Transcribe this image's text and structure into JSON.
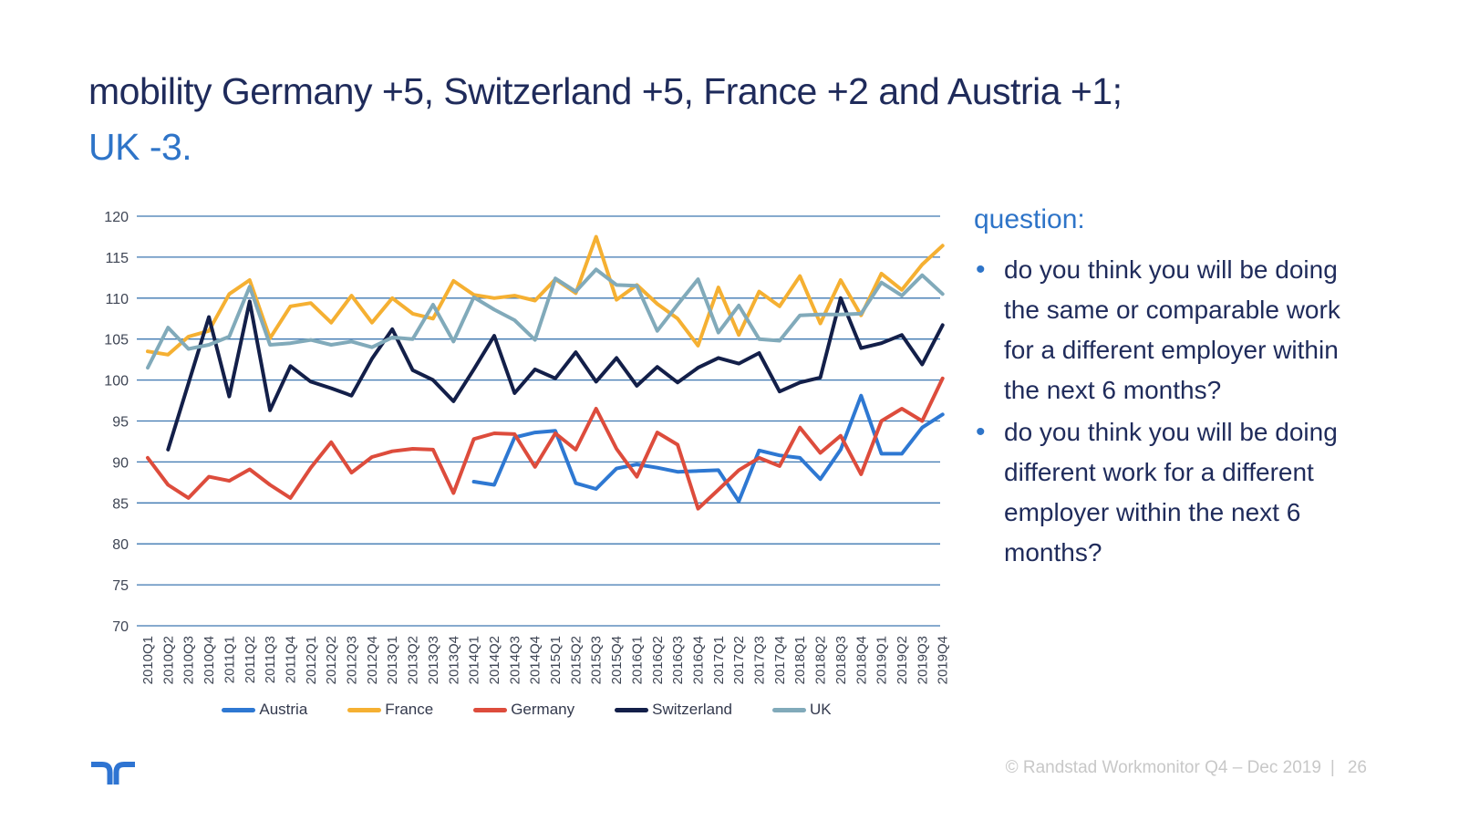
{
  "slide": {
    "title_line1": "mobility Germany +5, Switzerland +5, France +2 and Austria +1;",
    "title_line2": "UK -3.",
    "footer_text": "© Randstad Workmonitor Q4 – Dec 2019",
    "footer_separator": "|",
    "page_number": "26"
  },
  "question": {
    "heading": "question:",
    "bullets": [
      "do you think you will be doing the same or comparable work for a different employer within the next 6 months?",
      "do you think you will be doing different work for a different employer within the next 6 months?"
    ]
  },
  "colors": {
    "title_navy": "#1f2b5b",
    "accent_blue": "#2e74c8",
    "gridline": "#3d77b0",
    "axis_label": "#3e4554",
    "footer_gray": "#c8c8c8",
    "logo_blue": "#2e74d2"
  },
  "chart_data": {
    "type": "line",
    "title": "",
    "xlabel": "",
    "ylabel": "",
    "ylim": [
      70,
      120
    ],
    "ytick_step": 5,
    "grid": true,
    "legend_position": "bottom",
    "categories": [
      "2010Q1",
      "2010Q2",
      "2010Q3",
      "2010Q4",
      "2011Q1",
      "2011Q2",
      "2011Q3",
      "2011Q4",
      "2012Q1",
      "2012Q2",
      "2012Q3",
      "2012Q4",
      "2013Q1",
      "2013Q2",
      "2013Q3",
      "2013Q4",
      "2014Q1",
      "2014Q2",
      "2014Q3",
      "2014Q4",
      "2015Q1",
      "2015Q2",
      "2015Q3",
      "2015Q4",
      "2016Q1",
      "2016Q2",
      "2016Q3",
      "2016Q4",
      "2017Q1",
      "2017Q2",
      "2017Q3",
      "2017Q4",
      "2018Q1",
      "2018Q2",
      "2018Q3",
      "2018Q4",
      "2019Q1",
      "2019Q2",
      "2019Q3",
      "2019Q4"
    ],
    "series": [
      {
        "name": "Austria",
        "color": "#2e78d2",
        "values": [
          null,
          null,
          null,
          null,
          null,
          null,
          null,
          null,
          null,
          null,
          null,
          null,
          null,
          null,
          null,
          null,
          87.6,
          87.2,
          93.0,
          93.6,
          93.8,
          87.4,
          86.7,
          89.2,
          89.7,
          89.3,
          88.8,
          88.9,
          89.0,
          85.2,
          91.4,
          90.8,
          90.5,
          87.9,
          91.5,
          98.1,
          91.0,
          91.0,
          94.2,
          95.8
        ]
      },
      {
        "name": "France",
        "color": "#f5b032",
        "values": [
          103.5,
          103.1,
          105.3,
          106.0,
          110.5,
          112.2,
          105.1,
          109.0,
          109.4,
          107.0,
          110.3,
          107.0,
          110.0,
          108.1,
          107.5,
          112.1,
          110.4,
          110.0,
          110.3,
          109.7,
          112.3,
          110.6,
          117.5,
          109.8,
          111.6,
          109.3,
          107.5,
          104.2,
          111.3,
          105.5,
          110.8,
          109.0,
          112.7,
          106.9,
          112.2,
          107.9,
          113.0,
          111.0,
          114.1,
          116.4
        ]
      },
      {
        "name": "Germany",
        "color": "#dd4c3c",
        "values": [
          90.5,
          87.2,
          85.6,
          88.2,
          87.7,
          89.1,
          87.2,
          85.6,
          89.3,
          92.4,
          88.7,
          90.6,
          91.3,
          91.6,
          91.5,
          86.2,
          92.8,
          93.5,
          93.4,
          89.4,
          93.5,
          91.5,
          96.5,
          91.6,
          88.2,
          93.6,
          92.1,
          84.3,
          86.6,
          89.0,
          90.5,
          89.5,
          94.2,
          91.1,
          93.2,
          88.5,
          95.0,
          96.5,
          95.0,
          100.2
        ]
      },
      {
        "name": "Switzerland",
        "color": "#131f49",
        "values": [
          null,
          91.5,
          99.6,
          107.7,
          98.0,
          109.6,
          96.3,
          101.7,
          99.8,
          99.0,
          98.1,
          102.6,
          106.2,
          101.2,
          100.0,
          97.4,
          101.3,
          105.4,
          98.4,
          101.3,
          100.2,
          103.4,
          99.8,
          102.7,
          99.3,
          101.6,
          99.7,
          101.5,
          102.7,
          102.0,
          103.3,
          98.6,
          99.7,
          100.3,
          110.0,
          103.9,
          104.5,
          105.5,
          101.9,
          106.7
        ]
      },
      {
        "name": "UK",
        "color": "#81aaba",
        "values": [
          101.5,
          106.4,
          103.8,
          104.3,
          105.3,
          111.4,
          104.3,
          104.5,
          104.9,
          104.3,
          104.7,
          104.0,
          105.2,
          105.0,
          109.2,
          104.7,
          110.1,
          108.6,
          107.3,
          104.9,
          112.4,
          110.8,
          113.5,
          111.6,
          111.5,
          106.0,
          109.2,
          112.3,
          105.8,
          109.1,
          105.0,
          104.8,
          107.9,
          108.0,
          108.0,
          108.1,
          111.9,
          110.3,
          112.8,
          110.5
        ]
      }
    ]
  }
}
